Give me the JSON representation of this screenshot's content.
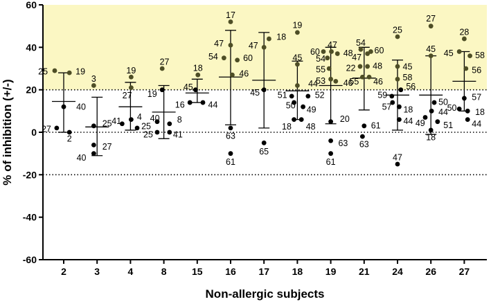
{
  "chart_data": {
    "type": "scatter",
    "title": "",
    "xlabel": "Non-allergic subjects",
    "ylabel": "% of inhibition (+/-)",
    "ylim": [
      -60,
      60
    ],
    "yticks": [
      -60,
      -40,
      -20,
      0,
      20,
      40,
      60
    ],
    "threshold_band": [
      20,
      60
    ],
    "reference_lines": [
      20,
      0,
      -20
    ],
    "colors": {
      "band": "#fbf7c3",
      "above": "#4e4e26",
      "below": "#000000",
      "lines": "#000000"
    },
    "subjects": [
      {
        "label": "2",
        "mean": 14.5,
        "sd_low": 0,
        "sd_high": 28,
        "points": [
          {
            "id": "25",
            "y": 29,
            "dx": -0.27,
            "lx": -0.62,
            "ly": -1
          },
          {
            "id": "19",
            "y": 28,
            "dx": 0.17,
            "lx": 0.5,
            "ly": 2
          },
          {
            "id": "40",
            "y": 12,
            "dx": 0,
            "lx": 0.52,
            "ly": 0
          },
          {
            "id": "27",
            "y": 2,
            "dx": -0.21,
            "lx": -0.52,
            "ly": -1
          },
          {
            "id": "2",
            "y": 0,
            "dx": 0.17,
            "lx": 0.17,
            "ly": -9
          }
        ]
      },
      {
        "label": "3",
        "mean": 2.5,
        "sd_low": -11,
        "sd_high": 16.5,
        "points": [
          {
            "id": "3",
            "y": 22,
            "dx": -0.1,
            "lx": -0.1,
            "ly": 10
          },
          {
            "id": "25",
            "y": 3,
            "dx": -0.1,
            "lx": 0.3,
            "ly": 4
          },
          {
            "id": "27",
            "y": -6,
            "dx": -0.1,
            "lx": 0.3,
            "ly": -2
          },
          {
            "id": "40",
            "y": -10,
            "dx": -0.1,
            "lx": -0.47,
            "ly": -6
          }
        ]
      },
      {
        "label": "4",
        "mean": 12,
        "sd_low": 1,
        "sd_high": 23.5,
        "points": [
          {
            "id": "19",
            "y": 26,
            "dx": 0.02,
            "lx": 0.02,
            "ly": 10
          },
          {
            "id": "27",
            "y": 21,
            "dx": 0.02,
            "lx": -0.1,
            "ly": -11
          },
          {
            "id": "4",
            "y": 6,
            "dx": 0.02,
            "lx": 0.27,
            "ly": 4
          },
          {
            "id": "41",
            "y": 4,
            "dx": -0.25,
            "lx": -0.42,
            "ly": 4
          },
          {
            "id": "25",
            "y": 2,
            "dx": 0.2,
            "lx": 0.47,
            "ly": 3
          }
        ]
      },
      {
        "label": "8",
        "mean": 9.5,
        "sd_low": -3,
        "sd_high": 22,
        "points": [
          {
            "id": "27",
            "y": 30,
            "dx": -0.05,
            "lx": 0.02,
            "ly": 10
          },
          {
            "id": "19",
            "y": 20,
            "dx": -0.05,
            "lx": -0.35,
            "ly": -6
          },
          {
            "id": "40",
            "y": 5,
            "dx": -0.2,
            "lx": -0.27,
            "ly": 5
          },
          {
            "id": "8",
            "y": 4,
            "dx": 0.17,
            "lx": 0.47,
            "ly": 6
          },
          {
            "id": "25",
            "y": 0,
            "dx": -0.2,
            "lx": -0.47,
            "ly": -3
          },
          {
            "id": "41",
            "y": 0,
            "dx": 0.17,
            "lx": 0.42,
            "ly": -3
          }
        ]
      },
      {
        "label": "15",
        "mean": 18.5,
        "sd_low": 14,
        "sd_high": 25,
        "points": [
          {
            "id": "18",
            "y": 27,
            "dx": 0.02,
            "lx": 0.02,
            "ly": 10
          },
          {
            "id": "45",
            "y": 20,
            "dx": -0.05,
            "lx": -0.27,
            "ly": 4
          },
          {
            "id": "16",
            "y": 14,
            "dx": -0.22,
            "lx": -0.52,
            "ly": -3
          },
          {
            "id": "44",
            "y": 14,
            "dx": 0.17,
            "lx": 0.47,
            "ly": -3
          }
        ]
      },
      {
        "label": "16",
        "mean": 26,
        "sd_low": 3.5,
        "sd_high": 48,
        "points": [
          {
            "id": "17",
            "y": 52,
            "dx": 0,
            "lx": 0,
            "ly": 10
          },
          {
            "id": "47",
            "y": 41,
            "dx": 0,
            "lx": -0.35,
            "ly": 3
          },
          {
            "id": "54",
            "y": 35,
            "dx": -0.2,
            "lx": -0.52,
            "ly": 2
          },
          {
            "id": "60",
            "y": 34,
            "dx": 0.2,
            "lx": 0.52,
            "ly": 3
          },
          {
            "id": "46",
            "y": 27,
            "dx": 0.05,
            "lx": 0.4,
            "ly": 2
          },
          {
            "id": "63",
            "y": 2,
            "dx": 0,
            "lx": 0,
            "ly": -11
          },
          {
            "id": "61",
            "y": -10,
            "dx": 0,
            "lx": 0,
            "ly": -12
          }
        ]
      },
      {
        "label": "17",
        "mean": 24.5,
        "sd_low": 2,
        "sd_high": 47,
        "points": [
          {
            "id": "18",
            "y": 44,
            "dx": 0.15,
            "lx": 0.52,
            "ly": 3
          },
          {
            "id": "47",
            "y": 40,
            "dx": 0,
            "lx": -0.32,
            "ly": 3
          },
          {
            "id": "45",
            "y": 20,
            "dx": 0,
            "lx": -0.27,
            "ly": -4
          },
          {
            "id": "65",
            "y": -5,
            "dx": 0,
            "lx": 0,
            "ly": -12
          }
        ]
      },
      {
        "label": "18",
        "mean": 19.5,
        "sd_low": 6,
        "sd_high": 33.5,
        "points": [
          {
            "id": "19",
            "y": 47,
            "dx": 0,
            "lx": 0,
            "ly": 11
          },
          {
            "id": "45",
            "y": 32,
            "dx": 0,
            "lx": 0,
            "ly": 10
          },
          {
            "id": "44",
            "y": 22,
            "dx": 0,
            "lx": 0.47,
            "ly": 3
          },
          {
            "id": "51",
            "y": 17,
            "dx": -0.17,
            "lx": -0.45,
            "ly": 2
          },
          {
            "id": "52",
            "y": 17,
            "dx": 0.32,
            "lx": 0.67,
            "ly": 2
          },
          {
            "id": "50",
            "y": 14,
            "dx": -0.1,
            "lx": -0.2,
            "ly": -4
          },
          {
            "id": "49",
            "y": 12,
            "dx": 0.17,
            "lx": 0.42,
            "ly": -4
          },
          {
            "id": "18",
            "y": 6,
            "dx": -0.1,
            "lx": -0.32,
            "ly": -10
          },
          {
            "id": "48",
            "y": 6,
            "dx": 0.12,
            "lx": 0.4,
            "ly": -10
          }
        ]
      },
      {
        "label": "19",
        "mean": 22,
        "sd_low": 4,
        "sd_high": 40,
        "points": [
          {
            "id": "60",
            "y": 38,
            "dx": -0.22,
            "lx": -0.47,
            "ly": 0
          },
          {
            "id": "47",
            "y": 38,
            "dx": 0.02,
            "lx": 0.05,
            "ly": 10
          },
          {
            "id": "48",
            "y": 37,
            "dx": 0.2,
            "lx": 0.52,
            "ly": 1
          },
          {
            "id": "54",
            "y": 35,
            "dx": -0.1,
            "lx": -0.3,
            "ly": -1
          },
          {
            "id": "55",
            "y": 30,
            "dx": -0.05,
            "lx": -0.3,
            "ly": -1
          },
          {
            "id": "53",
            "y": 25,
            "dx": 0,
            "lx": -0.3,
            "ly": -2
          },
          {
            "id": "46",
            "y": 24,
            "dx": 0.15,
            "lx": 0.52,
            "ly": -2
          },
          {
            "id": "20",
            "y": 5,
            "dx": 0,
            "lx": 0.42,
            "ly": 4
          },
          {
            "id": "63",
            "y": -4,
            "dx": 0,
            "lx": 0.37,
            "ly": -3
          },
          {
            "id": "61",
            "y": -10,
            "dx": 0,
            "lx": 0,
            "ly": -12
          }
        ]
      },
      {
        "label": "21",
        "mean": 25.5,
        "sd_low": 10.5,
        "sd_high": 40,
        "points": [
          {
            "id": "54",
            "y": 39,
            "dx": -0.1,
            "lx": -0.1,
            "ly": 10
          },
          {
            "id": "60",
            "y": 38,
            "dx": 0.2,
            "lx": 0.45,
            "ly": 2
          },
          {
            "id": "47",
            "y": 37,
            "dx": 0.1,
            "lx": -0.22,
            "ly": -5
          },
          {
            "id": "48",
            "y": 31,
            "dx": 0.1,
            "lx": 0.4,
            "ly": 1
          },
          {
            "id": "22",
            "y": 31,
            "dx": -0.12,
            "lx": -0.4,
            "ly": -2
          },
          {
            "id": "55",
            "y": 26,
            "dx": -0.05,
            "lx": -0.3,
            "ly": -6
          },
          {
            "id": "46",
            "y": 26,
            "dx": 0.15,
            "lx": 0.42,
            "ly": -6
          },
          {
            "id": "61",
            "y": 3,
            "dx": 0,
            "lx": 0.35,
            "ly": 1
          },
          {
            "id": "63",
            "y": -2,
            "dx": -0.05,
            "lx": 0,
            "ly": -11
          }
        ]
      },
      {
        "label": "24",
        "mean": 17.5,
        "sd_low": 1,
        "sd_high": 34,
        "points": [
          {
            "id": "25",
            "y": 45,
            "dx": 0,
            "lx": 0,
            "ly": 10
          },
          {
            "id": "45",
            "y": 31,
            "dx": 0,
            "lx": 0.3,
            "ly": 0
          },
          {
            "id": "58",
            "y": 25,
            "dx": 0,
            "lx": 0.3,
            "ly": 3
          },
          {
            "id": "56",
            "y": 20,
            "dx": 0.1,
            "lx": 0.4,
            "ly": 5
          },
          {
            "id": "59",
            "y": 17,
            "dx": -0.17,
            "lx": -0.45,
            "ly": 2
          },
          {
            "id": "57",
            "y": 14,
            "dx": -0.15,
            "lx": -0.32,
            "ly": -6
          },
          {
            "id": "18",
            "y": 12,
            "dx": 0.05,
            "lx": 0.32,
            "ly": -4
          },
          {
            "id": "44",
            "y": 6,
            "dx": 0.05,
            "lx": 0.32,
            "ly": -2
          },
          {
            "id": "47",
            "y": -15,
            "dx": 0,
            "lx": 0,
            "ly": 10
          }
        ]
      },
      {
        "label": "26",
        "mean": 17.5,
        "sd_low": -1,
        "sd_high": 36,
        "points": [
          {
            "id": "27",
            "y": 50,
            "dx": 0,
            "lx": 0,
            "ly": 11
          },
          {
            "id": "45",
            "y": 36,
            "dx": 0,
            "lx": 0,
            "ly": 10
          },
          {
            "id": "50",
            "y": 14,
            "dx": 0.1,
            "lx": 0.37,
            "ly": 1
          },
          {
            "id": "44",
            "y": 10,
            "dx": 0.02,
            "lx": 0.37,
            "ly": -1
          },
          {
            "id": "49",
            "y": 7,
            "dx": -0.17,
            "lx": -0.32,
            "ly": -8
          },
          {
            "id": "51",
            "y": 5,
            "dx": 0.2,
            "lx": 0.52,
            "ly": -5
          },
          {
            "id": "18",
            "y": 1,
            "dx": 0,
            "lx": 0,
            "ly": -10
          }
        ]
      },
      {
        "label": "27",
        "mean": 24,
        "sd_low": 10,
        "sd_high": 38,
        "points": [
          {
            "id": "28",
            "y": 44,
            "dx": 0,
            "lx": 0,
            "ly": 10
          },
          {
            "id": "45",
            "y": 38,
            "dx": -0.15,
            "lx": -0.47,
            "ly": -2
          },
          {
            "id": "58",
            "y": 36,
            "dx": 0.17,
            "lx": 0.47,
            "ly": 1
          },
          {
            "id": "56",
            "y": 30,
            "dx": 0.05,
            "lx": 0.37,
            "ly": -2
          },
          {
            "id": "57",
            "y": 16,
            "dx": 0,
            "lx": 0.37,
            "ly": 2
          },
          {
            "id": "50",
            "y": 11,
            "dx": -0.15,
            "lx": -0.37,
            "ly": 2
          },
          {
            "id": "18",
            "y": 10,
            "dx": 0.1,
            "lx": 0.47,
            "ly": -1
          },
          {
            "id": "44",
            "y": 6,
            "dx": 0.1,
            "lx": 0.37,
            "ly": -6
          }
        ]
      }
    ]
  }
}
